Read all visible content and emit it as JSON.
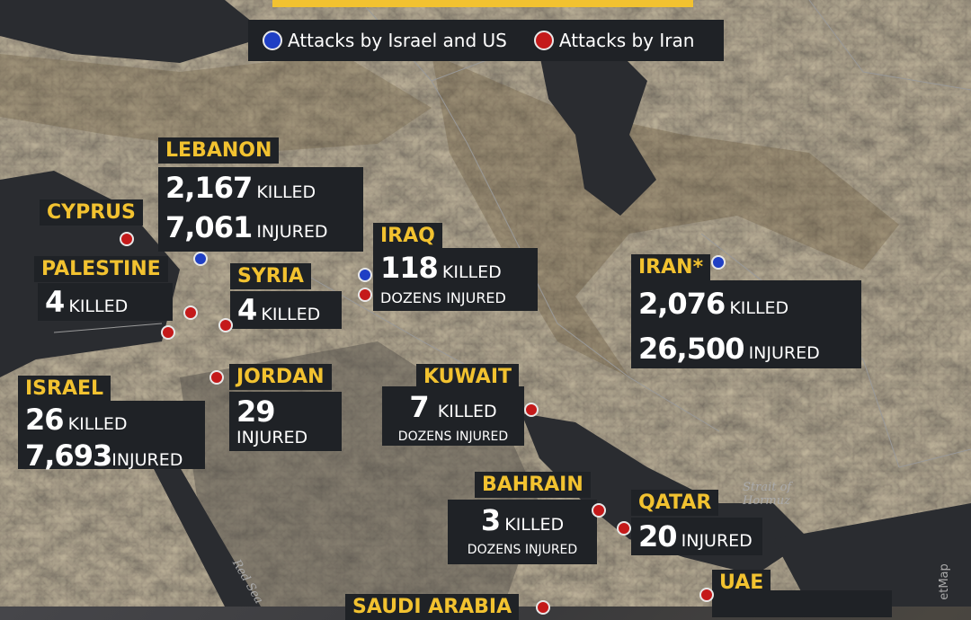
{
  "legend": {
    "israel_us": "Attacks by Israel and US",
    "iran": "Attacks by Iran",
    "colors": {
      "israel_us": "#1f3fc4",
      "iran": "#c41a1a"
    }
  },
  "map_labels": {
    "hormuz": "Strait of\nHormuz",
    "red_sea": "Red Sea",
    "credit": "etMap"
  },
  "countries": {
    "lebanon": {
      "name": "LEBANON",
      "killed": "2,167",
      "killed_label": "KILLED",
      "injured": "7,061",
      "injured_label": "INJURED",
      "attacker": "israel_us"
    },
    "cyprus": {
      "name": "CYPRUS",
      "attacker": "iran"
    },
    "palestine": {
      "name": "PALESTINE",
      "killed": "4",
      "killed_label": "KILLED",
      "attacker": "iran"
    },
    "syria": {
      "name": "SYRIA",
      "killed": "4",
      "killed_label": "KILLED",
      "attacker": "iran"
    },
    "iraq": {
      "name": "IRAQ",
      "killed": "118",
      "killed_label": "KILLED",
      "injured_text": "DOZENS INJURED",
      "attacker": "both"
    },
    "iran": {
      "name": "IRAN*",
      "killed": "2,076",
      "killed_label": "KILLED",
      "injured": "26,500",
      "injured_label": "INJURED",
      "attacker": "israel_us"
    },
    "israel": {
      "name": "ISRAEL",
      "killed": "26",
      "killed_label": "KILLED",
      "injured": "7,693",
      "injured_label": "INJURED",
      "attacker": "iran"
    },
    "jordan": {
      "name": "JORDAN",
      "injured": "29",
      "injured_label": "INJURED",
      "attacker": "iran"
    },
    "kuwait": {
      "name": "KUWAIT",
      "killed": "7",
      "killed_label": "KILLED",
      "injured_text": "DOZENS INJURED",
      "attacker": "iran"
    },
    "bahrain": {
      "name": "BAHRAIN",
      "killed": "3",
      "killed_label": "KILLED",
      "injured_text": "DOZENS INJURED",
      "attacker": "iran"
    },
    "qatar": {
      "name": "QATAR",
      "injured": "20",
      "injured_label": "INJURED",
      "attacker": "iran"
    },
    "uae": {
      "name": "UAE",
      "attacker": "iran"
    },
    "saudi": {
      "name": "SAUDI ARABIA",
      "attacker": "iran"
    }
  }
}
